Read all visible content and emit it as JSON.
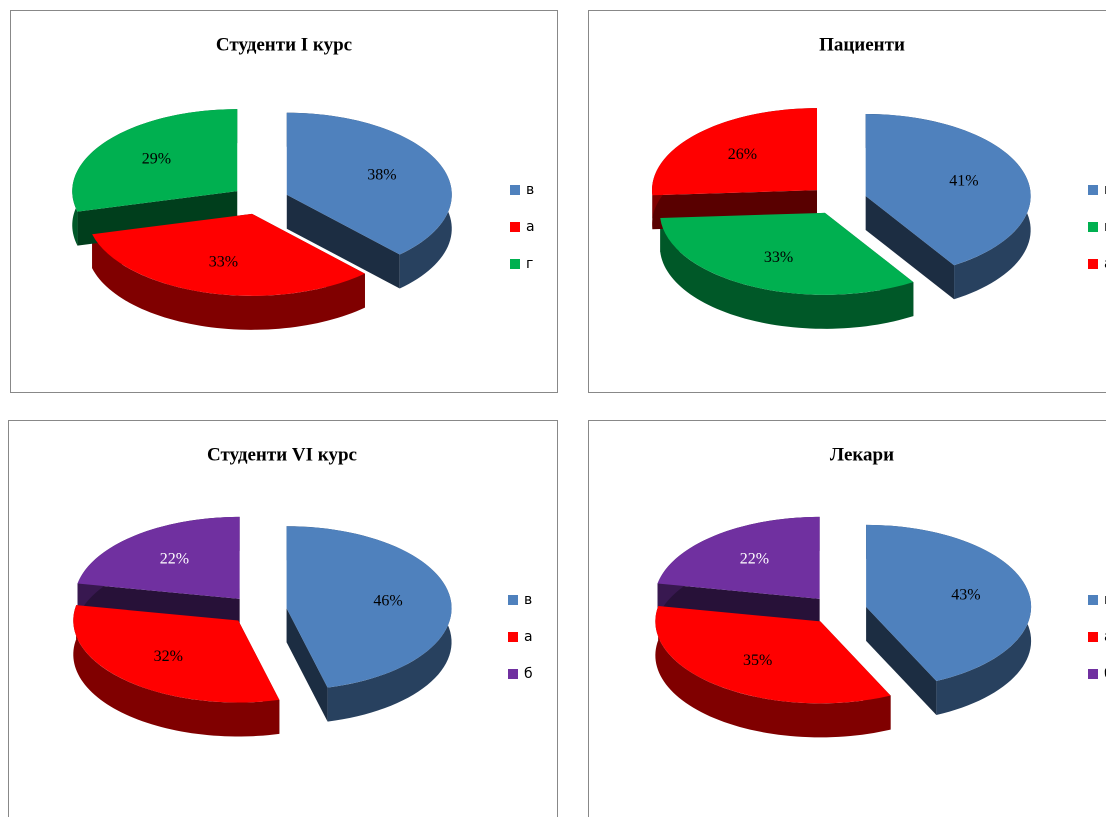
{
  "chart_data": [
    {
      "type": "pie",
      "title": "Студенти I курс",
      "categories": [
        "в",
        "а",
        "г"
      ],
      "values": [
        38,
        33,
        29
      ],
      "value_labels": [
        "38%",
        "33%",
        "29%"
      ],
      "colors": [
        "#4f81bd",
        "#ff0000",
        "#00b050"
      ]
    },
    {
      "type": "pie",
      "title": "Пациенти",
      "categories": [
        "в",
        "г",
        "а"
      ],
      "values": [
        41,
        33,
        26
      ],
      "value_labels": [
        "41%",
        "33%",
        "26%"
      ],
      "colors": [
        "#4f81bd",
        "#00b050",
        "#ff0000"
      ]
    },
    {
      "type": "pie",
      "title": "Студенти VI курс",
      "categories": [
        "в",
        "а",
        "б"
      ],
      "values": [
        46,
        32,
        22
      ],
      "value_labels": [
        "46%",
        "32%",
        "22%"
      ],
      "colors": [
        "#4f81bd",
        "#ff0000",
        "#7030a0"
      ]
    },
    {
      "type": "pie",
      "title": "Лекари",
      "categories": [
        "в",
        "а",
        "б"
      ],
      "values": [
        43,
        35,
        22
      ],
      "value_labels": [
        "43%",
        "35%",
        "22%"
      ],
      "colors": [
        "#4f81bd",
        "#ff0000",
        "#7030a0"
      ]
    }
  ]
}
